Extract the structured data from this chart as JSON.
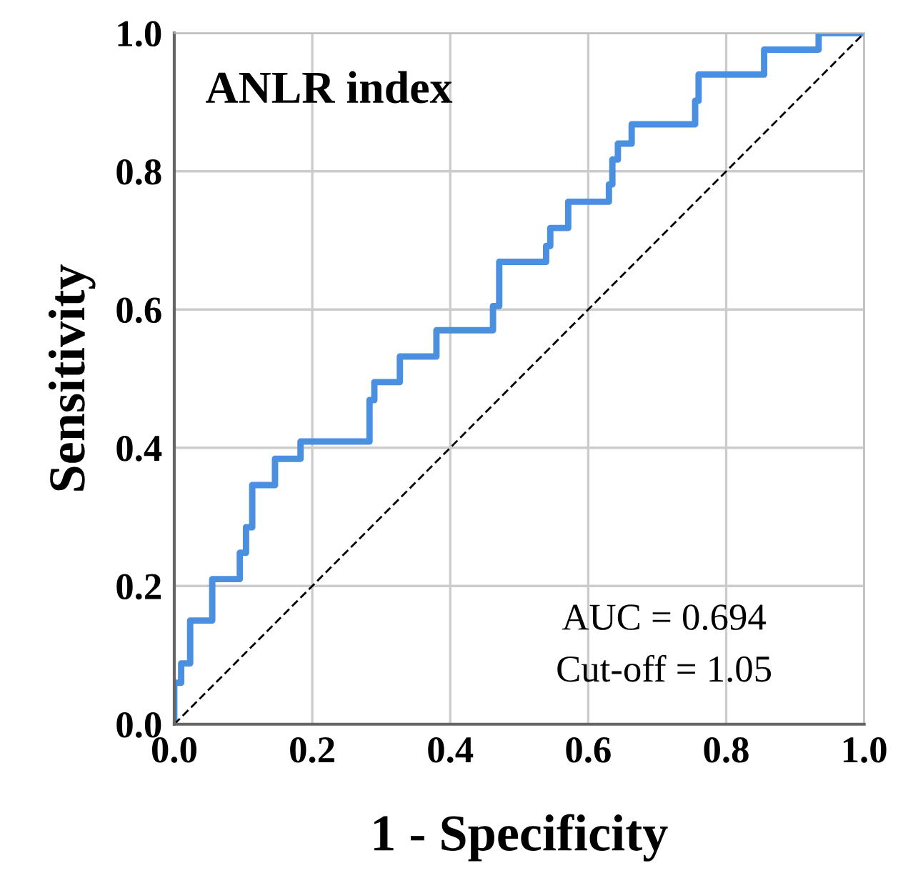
{
  "chart_data": {
    "type": "step",
    "title": "ANLR index",
    "xlabel": "1 - Specificity",
    "ylabel": "Sensitivity",
    "annotations": [
      "AUC = 0.694",
      "Cut-off = 1.05"
    ],
    "series": [
      {
        "color": "#4a8fe0",
        "line_style": "solid",
        "x": [
          0,
          0,
          0.01,
          0.023,
          0.055,
          0.095,
          0.104,
          0.113,
          0.146,
          0.183,
          0.283,
          0.29,
          0.327,
          0.38,
          0.462,
          0.471,
          0.539,
          0.545,
          0.571,
          0.63,
          0.635,
          0.643,
          0.663,
          0.755,
          0.76,
          0.855,
          0.934,
          1.0
        ],
        "values": [
          0,
          0.06,
          0.088,
          0.15,
          0.21,
          0.248,
          0.285,
          0.346,
          0.384,
          0.409,
          0.469,
          0.495,
          0.532,
          0.57,
          0.605,
          0.669,
          0.692,
          0.718,
          0.756,
          0.781,
          0.817,
          0.84,
          0.868,
          0.902,
          0.94,
          0.976,
          1.0,
          1.0
        ]
      },
      {
        "type": "line",
        "color": "#000000",
        "line_style": "dashed",
        "x": [
          0,
          1
        ],
        "values": [
          0,
          1
        ]
      }
    ],
    "xlim": [
      0,
      1
    ],
    "ylim": [
      0,
      1
    ],
    "xticks": [
      {
        "value": 0,
        "label": "0.0"
      },
      0.2,
      0.4,
      0.6,
      0.8,
      {
        "value": 1,
        "label": "1.0"
      }
    ],
    "yticks": [
      {
        "value": 0,
        "label": "0.0"
      },
      0.2,
      0.4,
      0.6,
      0.8,
      {
        "value": 1,
        "label": "1.0"
      }
    ],
    "grid": true,
    "marker": "none"
  }
}
